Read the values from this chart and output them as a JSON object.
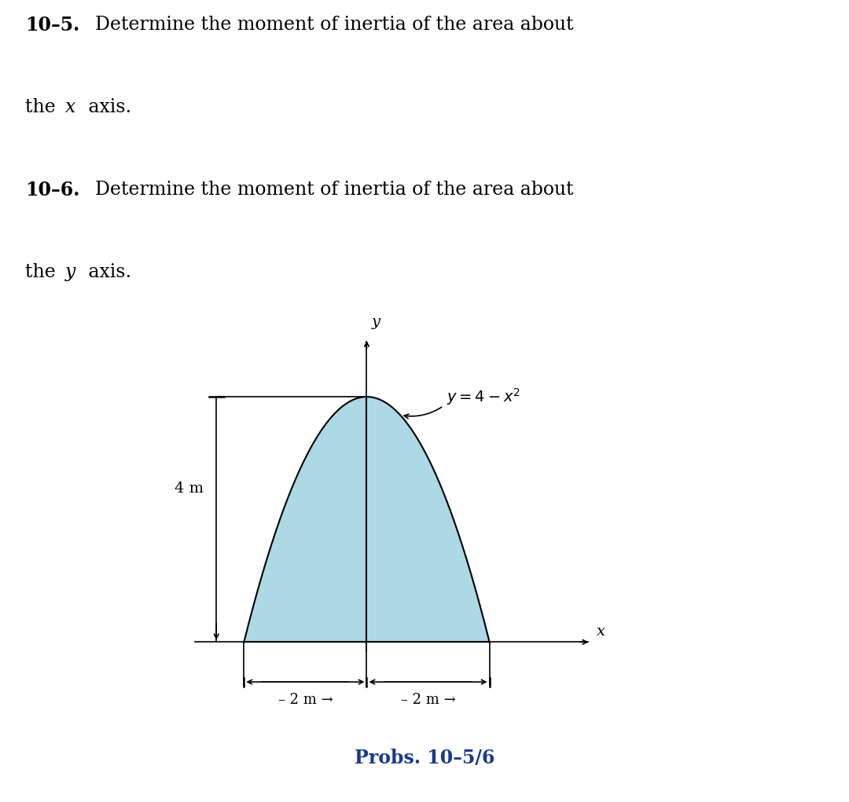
{
  "background_color": "#ffffff",
  "fill_color": "#add8e6",
  "text_color": "#000000",
  "bold_color": "#000000",
  "caption_color": "#1a3a8c",
  "prob5_bold": "10–5.",
  "prob5_text": "  Determine the moment of inertia of the area about\nthe ",
  "prob5_italic": "x",
  "prob5_end": " axis.",
  "prob6_bold": "10–6.",
  "prob6_text": "  Determine the moment of inertia of the area about\nthe ",
  "prob6_italic": "y",
  "prob6_end": " axis.",
  "caption": "Probs. 10–5/6",
  "height_label": "4 m",
  "dim_label": "2 m",
  "curve_equation": "$y = 4 - x^2$",
  "x_label": "x",
  "y_label": "y"
}
